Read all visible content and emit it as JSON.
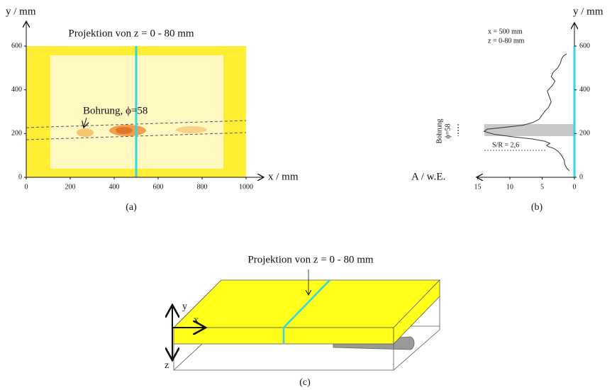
{
  "chart_data": [
    {
      "type": "heatmap",
      "title": "Projektion von z = 0 - 80 mm",
      "xlabel": "x / mm",
      "ylabel": "y / mm",
      "xlim": [
        0,
        1000
      ],
      "ylim": [
        0,
        600
      ],
      "xticks": [
        0,
        200,
        400,
        600,
        800,
        1000
      ],
      "yticks": [
        0,
        200,
        400,
        600
      ],
      "cut_x": 500,
      "cut_color": "#33d6e6",
      "color": "#ffee33",
      "annotation": "Bohrung, ϕ=58",
      "panel_label": "(a)"
    },
    {
      "type": "line",
      "xlabel": "A / w.E.",
      "ylabel": "y / mm",
      "color": "#333333",
      "cut_color": "#33d6e6",
      "x": [
        0.8,
        1.2,
        1.5,
        1.6,
        2.0,
        2.5,
        3.2,
        4.0,
        4.3,
        3.8,
        4.6,
        6.5,
        9.5,
        12.5,
        14.0,
        13.5,
        11.0,
        8.0,
        6.5,
        5.5,
        5.0,
        4.5,
        4.0,
        3.6,
        3.9,
        4.2,
        3.4,
        3.0,
        3.6,
        3.3,
        2.6,
        2.2,
        2.0,
        1.7,
        1.2
      ],
      "y": [
        30,
        42,
        60,
        80,
        100,
        118,
        132,
        140,
        146,
        155,
        165,
        175,
        185,
        197,
        210,
        220,
        228,
        238,
        250,
        265,
        285,
        305,
        320,
        345,
        370,
        395,
        420,
        440,
        460,
        480,
        500,
        520,
        540,
        555,
        565
      ],
      "xlim": [
        0,
        16
      ],
      "x_reversed": true,
      "ylim": [
        0,
        600
      ],
      "xticks": [
        0,
        5,
        10,
        15
      ],
      "yticks": [
        0,
        200,
        400,
        600
      ],
      "annotations": [
        "x = 500 mm",
        "z = 0-80 mm",
        "Bohrung",
        "ϕ=58",
        "S/R = 2,6"
      ],
      "panel_label": "(b)"
    }
  ],
  "diagram": {
    "title": "Projektion von z = 0 - 80 mm",
    "axes": [
      "x",
      "y",
      "z"
    ],
    "panel_label": "(c)"
  }
}
